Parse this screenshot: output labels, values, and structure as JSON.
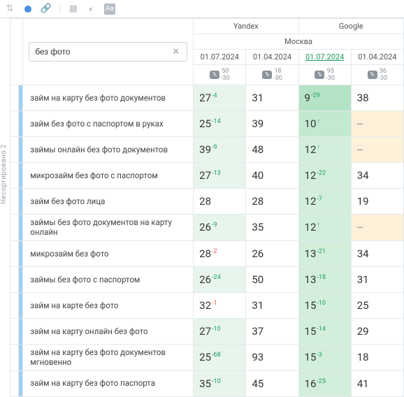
{
  "toolbar": {
    "sort_icon": "⇅",
    "link_icon": "🔗",
    "grid_icon": "▦",
    "contrast_icon": "◐",
    "aa_icon": "Aa"
  },
  "sidebar": {
    "label": "Несортировано 2"
  },
  "header": {
    "engines": [
      "Yandex",
      "Google"
    ],
    "region": "Москва",
    "dates": [
      {
        "text": "01.07.2024",
        "hl": false,
        "sub": "50\n-30"
      },
      {
        "text": "01.04.2024",
        "hl": false,
        "sub": "18\n-30"
      },
      {
        "text": "01.07.2024",
        "hl": true,
        "sub": "95\n-30"
      },
      {
        "text": "01.04.2024",
        "hl": false,
        "sub": "36\n-30"
      }
    ],
    "badge_label": "%"
  },
  "search": {
    "value": "без фото",
    "link_icon": "🔗"
  },
  "colors": {
    "green1": "#e7f5ec",
    "green2": "#d3efdc",
    "green3": "#c3e9d0",
    "green4": "#b4e3c5",
    "yellow": "#fdf1d9",
    "stripe": "#9ecff2"
  },
  "rows": [
    {
      "keyword": "займ на карту без фото документов",
      "cells": [
        {
          "v": "27",
          "d": "-4",
          "dc": "pos",
          "bg": "g1"
        },
        {
          "v": "31"
        },
        {
          "v": "9",
          "d": "-29",
          "dc": "pos",
          "bg": "g4"
        },
        {
          "v": "38"
        }
      ]
    },
    {
      "keyword": "займ без фото с паспортом в руках",
      "cells": [
        {
          "v": "25",
          "d": "-14",
          "dc": "pos",
          "bg": "g1"
        },
        {
          "v": "39"
        },
        {
          "v": "10",
          "d": "↑",
          "dc": "pos",
          "bg": "g3"
        },
        {
          "v": "--",
          "dash": true,
          "bg": "y"
        }
      ]
    },
    {
      "keyword": "займы онлайн без фото документов",
      "cells": [
        {
          "v": "39",
          "d": "-9",
          "dc": "pos",
          "bg": "g1"
        },
        {
          "v": "48"
        },
        {
          "v": "12",
          "d": "↑",
          "dc": "pos",
          "bg": "g2"
        },
        {
          "v": "--",
          "dash": true,
          "bg": "y"
        }
      ]
    },
    {
      "keyword": "микрозайм без фото с паспортом",
      "cells": [
        {
          "v": "27",
          "d": "-13",
          "dc": "pos",
          "bg": "g1"
        },
        {
          "v": "40"
        },
        {
          "v": "12",
          "d": "-22",
          "dc": "pos",
          "bg": "g2"
        },
        {
          "v": "34"
        }
      ]
    },
    {
      "keyword": "займ без фото лица",
      "cells": [
        {
          "v": "28"
        },
        {
          "v": "28"
        },
        {
          "v": "12",
          "d": "-7",
          "dc": "pos",
          "bg": "g2"
        },
        {
          "v": "19"
        }
      ]
    },
    {
      "keyword": "займы без фото документов на карту онлайн",
      "cells": [
        {
          "v": "26",
          "d": "-9",
          "dc": "pos",
          "bg": "g1"
        },
        {
          "v": "35"
        },
        {
          "v": "12",
          "d": "↑",
          "dc": "pos",
          "bg": "g2"
        },
        {
          "v": "--",
          "dash": true,
          "bg": "y"
        }
      ]
    },
    {
      "keyword": "микрозайм без фото",
      "cells": [
        {
          "v": "28",
          "d": "-2",
          "dc": "neg"
        },
        {
          "v": "26"
        },
        {
          "v": "13",
          "d": "-21",
          "dc": "pos",
          "bg": "g2"
        },
        {
          "v": "34"
        }
      ]
    },
    {
      "keyword": "займы без фото с паспортом",
      "cells": [
        {
          "v": "26",
          "d": "-24",
          "dc": "pos",
          "bg": "g1"
        },
        {
          "v": "50"
        },
        {
          "v": "13",
          "d": "-18",
          "dc": "pos",
          "bg": "g2"
        },
        {
          "v": "31"
        }
      ]
    },
    {
      "keyword": "займ на карте без фото",
      "cells": [
        {
          "v": "32",
          "d": "-1",
          "dc": "neg"
        },
        {
          "v": "31"
        },
        {
          "v": "15",
          "d": "-10",
          "dc": "pos",
          "bg": "g2"
        },
        {
          "v": "25"
        }
      ]
    },
    {
      "keyword": "займ на карту онлайн без фото",
      "cells": [
        {
          "v": "27",
          "d": "-10",
          "dc": "pos",
          "bg": "g1"
        },
        {
          "v": "37"
        },
        {
          "v": "15",
          "d": "-14",
          "dc": "pos",
          "bg": "g2"
        },
        {
          "v": "29"
        }
      ]
    },
    {
      "keyword": "займ на карту без фото документов мгновенно",
      "cells": [
        {
          "v": "25",
          "d": "-68",
          "dc": "pos",
          "bg": "g1"
        },
        {
          "v": "93"
        },
        {
          "v": "15",
          "d": "-3",
          "dc": "pos",
          "bg": "g2"
        },
        {
          "v": "18"
        }
      ]
    },
    {
      "keyword": "займ на карту без фото паспорта",
      "cells": [
        {
          "v": "35",
          "d": "-10",
          "dc": "pos",
          "bg": "g1"
        },
        {
          "v": "45"
        },
        {
          "v": "16",
          "d": "-25",
          "dc": "pos",
          "bg": "g2"
        },
        {
          "v": "41"
        }
      ]
    }
  ]
}
